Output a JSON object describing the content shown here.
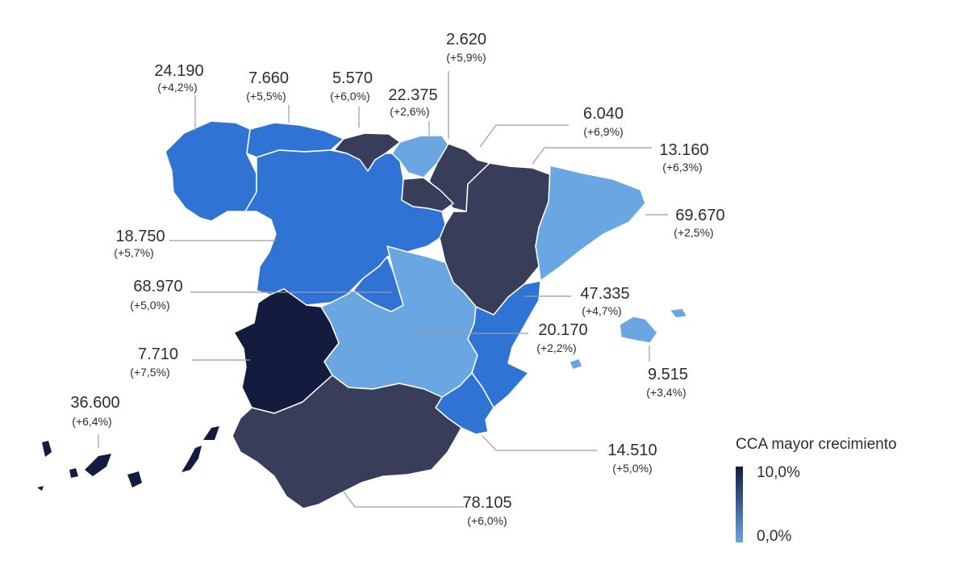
{
  "legend": {
    "title": "CCA mayor crecimiento",
    "max_label": "10,0%",
    "min_label": "0,0%",
    "max_color": "#131c3f",
    "min_color": "#6aa6e2"
  },
  "colors": {
    "light_blue": "#6aa6e2",
    "mid_blue": "#2f74d4",
    "dark_slate": "#383d5a",
    "navy": "#131c3f"
  },
  "regions": [
    {
      "id": "galicia",
      "value": "24.190",
      "change": "(+4,2%)"
    },
    {
      "id": "asturias",
      "value": "7.660",
      "change": "(+5,5%)"
    },
    {
      "id": "cantabria",
      "value": "5.570",
      "change": "(+6,0%)"
    },
    {
      "id": "pais-vasco",
      "value": "22.375",
      "change": "(+2,6%)"
    },
    {
      "id": "navarra",
      "value": "2.620",
      "change": "(+5,9%)"
    },
    {
      "id": "la-rioja",
      "value": "6.040",
      "change": "(+6,9%)"
    },
    {
      "id": "aragon",
      "value": "13.160",
      "change": "(+6,3%)"
    },
    {
      "id": "cataluna",
      "value": "69.670",
      "change": "(+2,5%)"
    },
    {
      "id": "castilla-leon",
      "value": "18.750",
      "change": "(+5,7%)"
    },
    {
      "id": "madrid",
      "value": "68.970",
      "change": "(+5,0%)"
    },
    {
      "id": "valencia",
      "value": "47.335",
      "change": "(+4,7%)"
    },
    {
      "id": "castilla-la-mancha",
      "value": "20.170",
      "change": "(+2,2%)"
    },
    {
      "id": "extremadura",
      "value": "7.710",
      "change": "(+7,5%)"
    },
    {
      "id": "baleares",
      "value": "9.515",
      "change": "(+3,4%)"
    },
    {
      "id": "canarias",
      "value": "36.600",
      "change": "(+6,4%)"
    },
    {
      "id": "murcia",
      "value": "14.510",
      "change": "(+5,0%)"
    },
    {
      "id": "andalucia",
      "value": "78.105",
      "change": "(+6,0%)"
    }
  ]
}
